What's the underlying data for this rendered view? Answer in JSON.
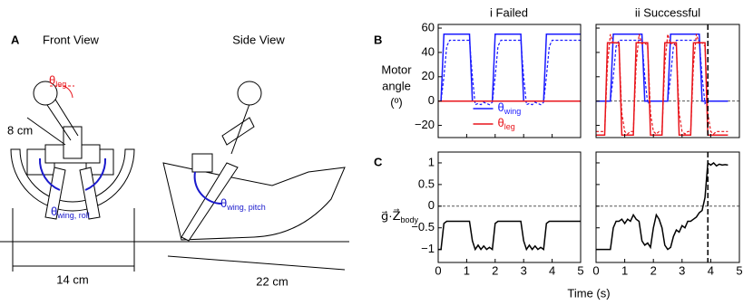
{
  "panel_a": {
    "label": "A",
    "front_view": "Front View",
    "side_view": "Side View",
    "theta_leg": {
      "symbol": "θ",
      "sub": "leg"
    },
    "length_short": "8 cm",
    "theta_wing_roll": {
      "symbol": "θ",
      "sub": "wing, roll"
    },
    "width": "14 cm",
    "theta_wing_pitch": {
      "symbol": "θ",
      "sub": "wing, pitch"
    },
    "length_long": "22 cm"
  },
  "panel_b_label": "B",
  "panel_c_label": "C",
  "column_titles": [
    "i Failed",
    "ii Successful"
  ],
  "b_ylabel": [
    "Motor",
    "angle",
    "(º)"
  ],
  "c_ylabel": {
    "text": "g⃗·Z⃗",
    "sub": "body"
  },
  "x_label": "Time (s)",
  "chart_data": [
    {
      "type": "line",
      "xlim": [
        0,
        5
      ],
      "ylim": [
        -30,
        63
      ],
      "xticks": [
        0,
        1,
        2,
        3,
        4,
        5
      ],
      "yticks": [
        {
          "value": -20,
          "label": "−20"
        },
        0,
        20,
        40,
        60
      ],
      "xtick_labels": false,
      "ytick_labels": true,
      "hline": 0,
      "legend": "lower center",
      "x": [
        0,
        0.1,
        0.2,
        0.3,
        0.4,
        0.5,
        0.6,
        0.7,
        0.8,
        0.9,
        1,
        1.1,
        1.2,
        1.3,
        1.4,
        1.5,
        1.6,
        1.7,
        1.8,
        1.9,
        2,
        2.1,
        2.2,
        2.3,
        2.4,
        2.5,
        2.6,
        2.7,
        2.8,
        2.9,
        3,
        3.1,
        3.2,
        3.3,
        3.4,
        3.5,
        3.6,
        3.7,
        3.8,
        3.9,
        4,
        4.1,
        4.2,
        4.3,
        4.4,
        4.5,
        4.6,
        4.7,
        4.8,
        4.9,
        5
      ],
      "series": [
        {
          "name": "θ",
          "name_sub": "wing",
          "color": "#1a1aff",
          "dash": false,
          "values": [
            0,
            0,
            55,
            55,
            55,
            55,
            55,
            55,
            55,
            55,
            55,
            55,
            0,
            0,
            0,
            0,
            0,
            0,
            0,
            0,
            55,
            55,
            55,
            55,
            55,
            55,
            55,
            55,
            55,
            55,
            0,
            0,
            0,
            0,
            0,
            0,
            0,
            0,
            55,
            55,
            55,
            55,
            55,
            55,
            55,
            55,
            55,
            55,
            55,
            55,
            55
          ]
        },
        {
          "color": "#1a1aff",
          "dash": true,
          "values": [
            0,
            0,
            20,
            45,
            50,
            50,
            50,
            50,
            50,
            50,
            50,
            50,
            20,
            -3,
            -2,
            -3,
            -1,
            -2,
            -3,
            -1,
            20,
            45,
            50,
            50,
            50,
            50,
            50,
            50,
            50,
            50,
            20,
            -3,
            -2,
            -3,
            -1,
            -2,
            -3,
            -1,
            20,
            45,
            50,
            50,
            50,
            50,
            50,
            50,
            50,
            50,
            50,
            50,
            50
          ]
        },
        {
          "name": "θ",
          "name_sub": "leg",
          "color": "#e8141b",
          "dash": false,
          "values": [
            0,
            0,
            0,
            0,
            0,
            0,
            0,
            0,
            0,
            0,
            0,
            0,
            0,
            0,
            0,
            0,
            0,
            0,
            0,
            0,
            0,
            0,
            0,
            0,
            0,
            0,
            0,
            0,
            0,
            0,
            0,
            0,
            0,
            0,
            0,
            0,
            0,
            0,
            0,
            0,
            0,
            0,
            0,
            0,
            0,
            0,
            0,
            0,
            0,
            0,
            0
          ]
        }
      ]
    },
    {
      "type": "line",
      "xlim": [
        0,
        5
      ],
      "ylim": [
        -30,
        63
      ],
      "xticks": [
        0,
        1,
        2,
        3,
        4,
        5
      ],
      "yticks": [
        -20,
        0,
        20,
        40,
        60
      ],
      "xtick_labels": false,
      "ytick_labels": false,
      "hline": 0,
      "vline": 3.9,
      "x": [
        0,
        0.1,
        0.2,
        0.3,
        0.4,
        0.5,
        0.6,
        0.7,
        0.8,
        0.9,
        1,
        1.1,
        1.2,
        1.3,
        1.4,
        1.5,
        1.6,
        1.7,
        1.8,
        1.9,
        2,
        2.1,
        2.2,
        2.3,
        2.4,
        2.5,
        2.6,
        2.7,
        2.8,
        2.9,
        3,
        3.1,
        3.2,
        3.3,
        3.4,
        3.5,
        3.6,
        3.7,
        3.8,
        3.9,
        4,
        4.1,
        4.2,
        4.3,
        4.4,
        4.5,
        4.6,
        4.7,
        4.8,
        4.9,
        5
      ],
      "series": [
        {
          "color": "#1a1aff",
          "dash": false,
          "values": [
            0,
            0,
            0,
            0,
            0,
            0,
            55,
            55,
            55,
            55,
            55,
            55,
            55,
            55,
            55,
            55,
            55,
            0,
            0,
            0,
            0,
            0,
            0,
            0,
            0,
            0,
            55,
            55,
            55,
            55,
            55,
            55,
            55,
            55,
            55,
            55,
            55,
            0,
            0,
            0,
            0,
            0,
            0,
            0,
            0,
            0,
            0,
            null,
            null,
            null,
            null
          ]
        },
        {
          "color": "#1a1aff",
          "dash": true,
          "values": [
            0,
            0,
            0,
            0,
            0,
            0,
            20,
            45,
            50,
            50,
            50,
            50,
            50,
            50,
            50,
            50,
            50,
            20,
            -2,
            0,
            0,
            0,
            0,
            0,
            0,
            0,
            20,
            45,
            50,
            50,
            50,
            50,
            50,
            50,
            50,
            50,
            50,
            20,
            -2,
            0,
            0,
            0,
            0,
            0,
            0,
            0,
            0,
            null,
            null,
            null,
            null
          ]
        },
        {
          "color": "#e8141b",
          "dash": false,
          "values": [
            -28,
            -28,
            -28,
            -28,
            48,
            48,
            48,
            48,
            48,
            -28,
            -28,
            -28,
            -28,
            -28,
            48,
            48,
            48,
            48,
            48,
            -28,
            -28,
            -28,
            -28,
            -28,
            48,
            48,
            48,
            48,
            48,
            -28,
            -28,
            -28,
            -28,
            -28,
            48,
            48,
            48,
            48,
            48,
            -28,
            -28,
            -28,
            -28,
            -28,
            -28,
            -28,
            -28,
            null,
            null,
            null,
            null
          ]
        },
        {
          "color": "#e8141b",
          "dash": true,
          "values": [
            -25,
            -25,
            -25,
            -25,
            30,
            55,
            47,
            48,
            45,
            -10,
            -25,
            -27,
            -25,
            -25,
            30,
            55,
            47,
            48,
            45,
            -10,
            -25,
            -27,
            -25,
            -25,
            30,
            55,
            47,
            48,
            45,
            -10,
            -25,
            -27,
            -25,
            -25,
            30,
            55,
            47,
            48,
            45,
            -10,
            -25,
            -27,
            -25,
            -25,
            -25,
            -25,
            -25,
            null,
            null,
            null,
            null
          ]
        }
      ]
    },
    {
      "type": "line",
      "xlim": [
        0,
        5
      ],
      "ylim": [
        -1.3,
        1.25
      ],
      "xticks": [
        0,
        1,
        2,
        3,
        4,
        5
      ],
      "yticks": [
        {
          "value": -1,
          "label": "−1"
        },
        {
          "value": -0.5,
          "label": "−0.5"
        },
        0,
        0.5,
        1
      ],
      "xtick_labels": true,
      "ytick_labels": true,
      "hline": 0,
      "x": [
        0,
        0.1,
        0.2,
        0.3,
        0.4,
        0.5,
        0.6,
        0.7,
        0.8,
        0.9,
        1,
        1.1,
        1.2,
        1.3,
        1.4,
        1.5,
        1.6,
        1.7,
        1.8,
        1.9,
        2,
        2.1,
        2.2,
        2.3,
        2.4,
        2.5,
        2.6,
        2.7,
        2.8,
        2.9,
        3,
        3.1,
        3.2,
        3.3,
        3.4,
        3.5,
        3.6,
        3.7,
        3.8,
        3.9,
        4,
        4.1,
        4.2,
        4.3,
        4.4,
        4.5,
        4.6,
        4.7,
        4.8,
        4.9,
        5
      ],
      "series": [
        {
          "color": "#000000",
          "dash": false,
          "values": [
            -1,
            -1,
            -0.4,
            -0.35,
            -0.35,
            -0.35,
            -0.35,
            -0.35,
            -0.35,
            -0.35,
            -0.35,
            -0.35,
            -0.8,
            -1,
            -0.9,
            -1,
            -0.92,
            -1,
            -0.95,
            -1,
            -0.4,
            -0.35,
            -0.35,
            -0.35,
            -0.35,
            -0.35,
            -0.35,
            -0.35,
            -0.35,
            -0.35,
            -0.8,
            -1,
            -0.9,
            -1,
            -0.92,
            -1,
            -0.95,
            -1,
            -0.4,
            -0.35,
            -0.35,
            -0.35,
            -0.35,
            -0.35,
            -0.35,
            -0.35,
            -0.35,
            -0.35,
            -0.35,
            -0.35,
            -0.35
          ]
        }
      ]
    },
    {
      "type": "line",
      "xlim": [
        0,
        5
      ],
      "ylim": [
        -1.3,
        1.25
      ],
      "xticks": [
        0,
        1,
        2,
        3,
        4,
        5
      ],
      "yticks": [
        -1,
        -0.5,
        0,
        0.5,
        1
      ],
      "xtick_labels": true,
      "ytick_labels": false,
      "hline": 0,
      "vline": 3.9,
      "x": [
        0,
        0.1,
        0.2,
        0.3,
        0.4,
        0.5,
        0.6,
        0.7,
        0.8,
        0.9,
        1,
        1.1,
        1.2,
        1.3,
        1.4,
        1.5,
        1.6,
        1.7,
        1.8,
        1.9,
        2,
        2.1,
        2.2,
        2.3,
        2.4,
        2.5,
        2.6,
        2.7,
        2.8,
        2.9,
        3,
        3.1,
        3.2,
        3.3,
        3.4,
        3.5,
        3.6,
        3.7,
        3.8,
        3.9,
        4,
        4.1,
        4.2,
        4.3,
        4.4,
        4.5,
        4.6,
        4.7,
        4.8,
        4.9,
        5
      ],
      "series": [
        {
          "color": "#000000",
          "dash": false,
          "values": [
            -1,
            -1,
            -1,
            -1,
            -1,
            -1,
            -0.5,
            -0.35,
            -0.35,
            -0.3,
            -0.4,
            -0.3,
            -0.35,
            -0.2,
            -0.3,
            -0.35,
            -0.8,
            -0.9,
            -0.85,
            -0.95,
            -0.5,
            -0.2,
            -0.3,
            -0.5,
            -0.9,
            -1,
            -0.95,
            -0.7,
            -0.55,
            -0.6,
            -0.45,
            -0.5,
            -0.35,
            -0.35,
            -0.3,
            -0.25,
            -0.15,
            -0.1,
            0.2,
            1,
            0.95,
            1,
            0.93,
            0.97,
            0.95,
            0.96,
            0.95,
            null,
            null,
            null,
            null
          ]
        }
      ]
    }
  ]
}
